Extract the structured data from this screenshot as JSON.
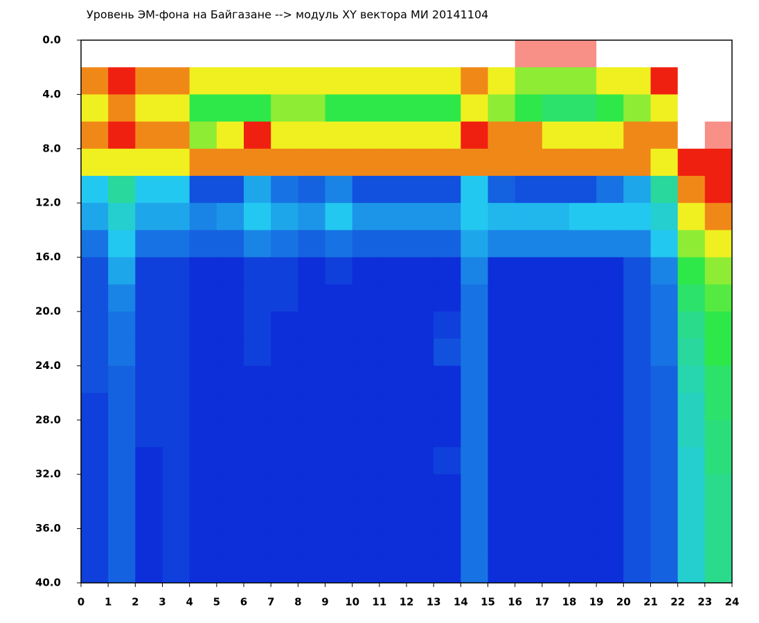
{
  "chart_data": {
    "type": "heatmap",
    "title": "Уровень ЭМ-фона на Байгазане  -->  модуль XY вектора МИ  20141104",
    "xbins": [
      0,
      1,
      2,
      3,
      4,
      5,
      6,
      7,
      8,
      9,
      10,
      11,
      12,
      13,
      14,
      15,
      16,
      17,
      18,
      19,
      20,
      21,
      22,
      23,
      24
    ],
    "ybins": [
      0,
      2,
      4,
      6,
      8,
      10,
      12,
      14,
      16,
      18,
      20,
      22,
      24,
      26,
      28,
      30,
      32,
      34,
      36,
      38,
      40
    ],
    "z": [
      [
        5,
        5,
        5,
        5,
        5,
        5,
        5,
        5,
        5,
        5,
        5,
        5,
        5,
        5,
        5,
        5,
        4.5,
        4.5,
        4.5,
        5,
        5,
        5,
        5,
        5
      ],
      [
        3.5,
        4,
        3.5,
        3.5,
        3,
        3,
        3,
        3,
        3,
        3,
        3,
        3,
        3,
        3,
        3.5,
        3,
        2.5,
        2.5,
        2.5,
        3,
        3,
        4,
        5,
        5
      ],
      [
        3,
        3.5,
        3,
        3,
        2,
        2,
        2,
        2.5,
        2.5,
        2,
        2,
        2,
        2,
        2,
        3,
        2.5,
        2,
        1.8,
        1.8,
        2,
        2.5,
        3,
        5,
        5
      ],
      [
        3.5,
        4,
        3.5,
        3.5,
        2.5,
        3,
        4,
        3,
        3,
        3,
        3,
        3,
        3,
        3,
        4,
        3.5,
        3.5,
        3,
        3,
        3,
        3.5,
        3.5,
        5,
        4.5
      ],
      [
        3,
        3,
        3,
        3,
        3.5,
        3.5,
        3.5,
        3.5,
        3.5,
        3.5,
        3.5,
        3.5,
        3.5,
        3.5,
        3.5,
        3.5,
        3.5,
        3.5,
        3.5,
        3.5,
        3.5,
        3,
        4,
        4
      ],
      [
        1,
        1.5,
        1,
        1,
        0.3,
        0.3,
        0.8,
        0.5,
        0.4,
        0.6,
        0.3,
        0.3,
        0.3,
        0.3,
        1,
        0.4,
        0.3,
        0.3,
        0.3,
        0.5,
        0.8,
        1.5,
        3.5,
        4
      ],
      [
        0.8,
        1.2,
        0.8,
        0.8,
        0.6,
        0.7,
        1,
        0.8,
        0.7,
        1,
        0.7,
        0.7,
        0.7,
        0.7,
        1,
        0.9,
        0.9,
        0.9,
        1,
        1,
        1,
        1.2,
        3,
        3.5
      ],
      [
        0.5,
        1,
        0.5,
        0.5,
        0.4,
        0.4,
        0.6,
        0.5,
        0.4,
        0.5,
        0.4,
        0.4,
        0.4,
        0.4,
        0.8,
        0.6,
        0.6,
        0.6,
        0.6,
        0.6,
        0.6,
        1,
        2.5,
        3
      ],
      [
        0.3,
        0.8,
        0.2,
        0.2,
        0.1,
        0.1,
        0.2,
        0.2,
        0.1,
        0.2,
        0.1,
        0.1,
        0.1,
        0.1,
        0.6,
        0.1,
        0.1,
        0.1,
        0.1,
        0.1,
        0.3,
        0.6,
        2,
        2.5
      ],
      [
        0.3,
        0.6,
        0.2,
        0.2,
        0.1,
        0.1,
        0.2,
        0.2,
        0.1,
        0.1,
        0.1,
        0.1,
        0.1,
        0.1,
        0.5,
        0.1,
        0.1,
        0.1,
        0.1,
        0.1,
        0.3,
        0.5,
        1.8,
        2.2
      ],
      [
        0.3,
        0.5,
        0.2,
        0.2,
        0.1,
        0.1,
        0.2,
        0.1,
        0.1,
        0.1,
        0.1,
        0.1,
        0.1,
        0.2,
        0.5,
        0.1,
        0.1,
        0.1,
        0.1,
        0.1,
        0.3,
        0.5,
        1.6,
        2
      ],
      [
        0.3,
        0.5,
        0.2,
        0.2,
        0.1,
        0.1,
        0.2,
        0.1,
        0.1,
        0.1,
        0.1,
        0.1,
        0.1,
        0.3,
        0.5,
        0.1,
        0.1,
        0.1,
        0.1,
        0.1,
        0.3,
        0.5,
        1.5,
        2
      ],
      [
        0.3,
        0.4,
        0.2,
        0.2,
        0.1,
        0.1,
        0.1,
        0.1,
        0.1,
        0.1,
        0.1,
        0.1,
        0.1,
        0.1,
        0.5,
        0.1,
        0.1,
        0.1,
        0.1,
        0.1,
        0.3,
        0.4,
        1.4,
        1.8
      ],
      [
        0.2,
        0.4,
        0.2,
        0.2,
        0.1,
        0.1,
        0.1,
        0.1,
        0.1,
        0.1,
        0.1,
        0.1,
        0.1,
        0.1,
        0.5,
        0.1,
        0.1,
        0.1,
        0.1,
        0.1,
        0.3,
        0.4,
        1.3,
        1.8
      ],
      [
        0.2,
        0.4,
        0.2,
        0.2,
        0.1,
        0.1,
        0.1,
        0.1,
        0.1,
        0.1,
        0.1,
        0.1,
        0.1,
        0.1,
        0.5,
        0.1,
        0.1,
        0.1,
        0.1,
        0.1,
        0.3,
        0.4,
        1.3,
        1.7
      ],
      [
        0.2,
        0.4,
        0.1,
        0.2,
        0.1,
        0.1,
        0.1,
        0.1,
        0.1,
        0.1,
        0.1,
        0.1,
        0.1,
        0.2,
        0.5,
        0.1,
        0.1,
        0.1,
        0.1,
        0.1,
        0.3,
        0.4,
        1.2,
        1.7
      ],
      [
        0.2,
        0.4,
        0.1,
        0.2,
        0.1,
        0.1,
        0.1,
        0.1,
        0.1,
        0.1,
        0.1,
        0.1,
        0.1,
        0.1,
        0.5,
        0.1,
        0.1,
        0.1,
        0.1,
        0.1,
        0.3,
        0.4,
        1.2,
        1.6
      ],
      [
        0.2,
        0.4,
        0.1,
        0.2,
        0.1,
        0.1,
        0.1,
        0.1,
        0.1,
        0.1,
        0.1,
        0.1,
        0.1,
        0.1,
        0.5,
        0.1,
        0.1,
        0.1,
        0.1,
        0.1,
        0.3,
        0.4,
        1.2,
        1.6
      ],
      [
        0.2,
        0.4,
        0.1,
        0.2,
        0.1,
        0.1,
        0.1,
        0.1,
        0.1,
        0.1,
        0.1,
        0.1,
        0.1,
        0.1,
        0.5,
        0.1,
        0.1,
        0.1,
        0.1,
        0.1,
        0.3,
        0.4,
        1.2,
        1.6
      ],
      [
        0.2,
        0.4,
        0.1,
        0.2,
        0.1,
        0.1,
        0.1,
        0.1,
        0.1,
        0.1,
        0.1,
        0.1,
        0.1,
        0.1,
        0.5,
        0.1,
        0.1,
        0.1,
        0.1,
        0.1,
        0.3,
        0.4,
        1.2,
        1.6
      ]
    ],
    "color_scale": [
      "#0b1ed6",
      "#23c8f0",
      "#2ee84a",
      "#f0f020",
      "#f02010",
      "#ffffff"
    ],
    "xlim": [
      0,
      24
    ],
    "xticks": [
      0,
      1,
      2,
      3,
      4,
      5,
      6,
      7,
      8,
      9,
      10,
      11,
      12,
      13,
      14,
      15,
      16,
      17,
      18,
      19,
      20,
      21,
      22,
      23,
      24
    ],
    "ylim": [
      0,
      40
    ],
    "y_inverted": true,
    "yticks": [
      {
        "value": 0,
        "label": "0.0"
      },
      {
        "value": 4,
        "label": "4.0"
      },
      {
        "value": 8,
        "label": "8.0"
      },
      {
        "value": 12,
        "label": "12.0"
      },
      {
        "value": 16,
        "label": "16.0"
      },
      {
        "value": 20,
        "label": "20.0"
      },
      {
        "value": 24,
        "label": "24.0"
      },
      {
        "value": 28,
        "label": "28.0"
      },
      {
        "value": 32,
        "label": "32.0"
      },
      {
        "value": 36,
        "label": "36.0"
      },
      {
        "value": 40,
        "label": "40.0"
      }
    ]
  }
}
